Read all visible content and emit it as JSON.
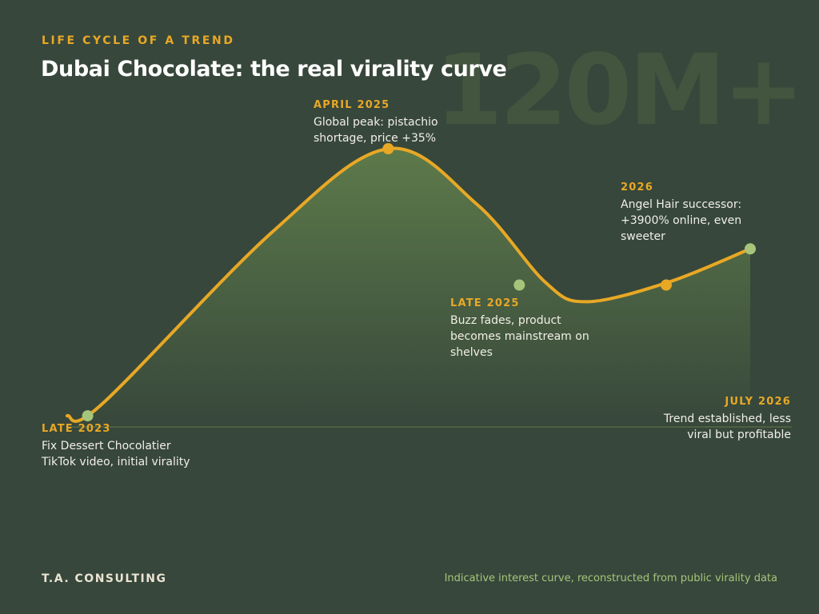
{
  "header": {
    "kicker": "LIFE CYCLE OF A TREND",
    "title": "Dubai Chocolate: the real virality curve",
    "watermark": "120M+"
  },
  "chart_data": {
    "type": "area",
    "title": "Dubai Chocolate: the real virality curve",
    "xlabel": "",
    "ylabel": "",
    "grid": false,
    "colors": {
      "line": "#e8a825",
      "fill": "#5d7a4a",
      "milestone_dot": "#a6c57a",
      "peak_dot": "#e8a825",
      "baseline": "#5b7046"
    },
    "series": [
      {
        "values": [
          {
            "x": 0.0,
            "y": 4
          },
          {
            "x": 0.05,
            "y": 8
          },
          {
            "x": 0.3,
            "y": 70
          },
          {
            "x": 0.47,
            "y": 100
          },
          {
            "x": 0.6,
            "y": 80
          },
          {
            "x": 0.7,
            "y": 52
          },
          {
            "x": 0.76,
            "y": 45
          },
          {
            "x": 0.88,
            "y": 52
          },
          {
            "x": 1.0,
            "y": 64
          }
        ]
      }
    ],
    "milestones": [
      {
        "x": 0.03,
        "y": 4,
        "kind": "start",
        "label": "LATE 2023",
        "text": "Fix Dessert Chocolatier TikTok video, initial virality"
      },
      {
        "x": 0.47,
        "y": 100,
        "kind": "peak",
        "label": "APRIL 2025",
        "text": "Global peak: pistachio shortage, price +35%"
      },
      {
        "x": 0.662,
        "y": 51,
        "kind": "fade",
        "label": "LATE 2025",
        "text": "Buzz fades, product becomes mainstream on shelves"
      },
      {
        "x": 0.877,
        "y": 51,
        "kind": "successor",
        "label": "2026",
        "text": "Angel Hair successor: +3900% online, even sweeter"
      },
      {
        "x": 1.0,
        "y": 64,
        "kind": "established",
        "label": "JULY 2026",
        "text": "Trend established, less viral but profitable"
      }
    ]
  },
  "footer": {
    "brand": "T.A. CONSULTING",
    "note": "Indicative interest curve, reconstructed from public virality data"
  }
}
